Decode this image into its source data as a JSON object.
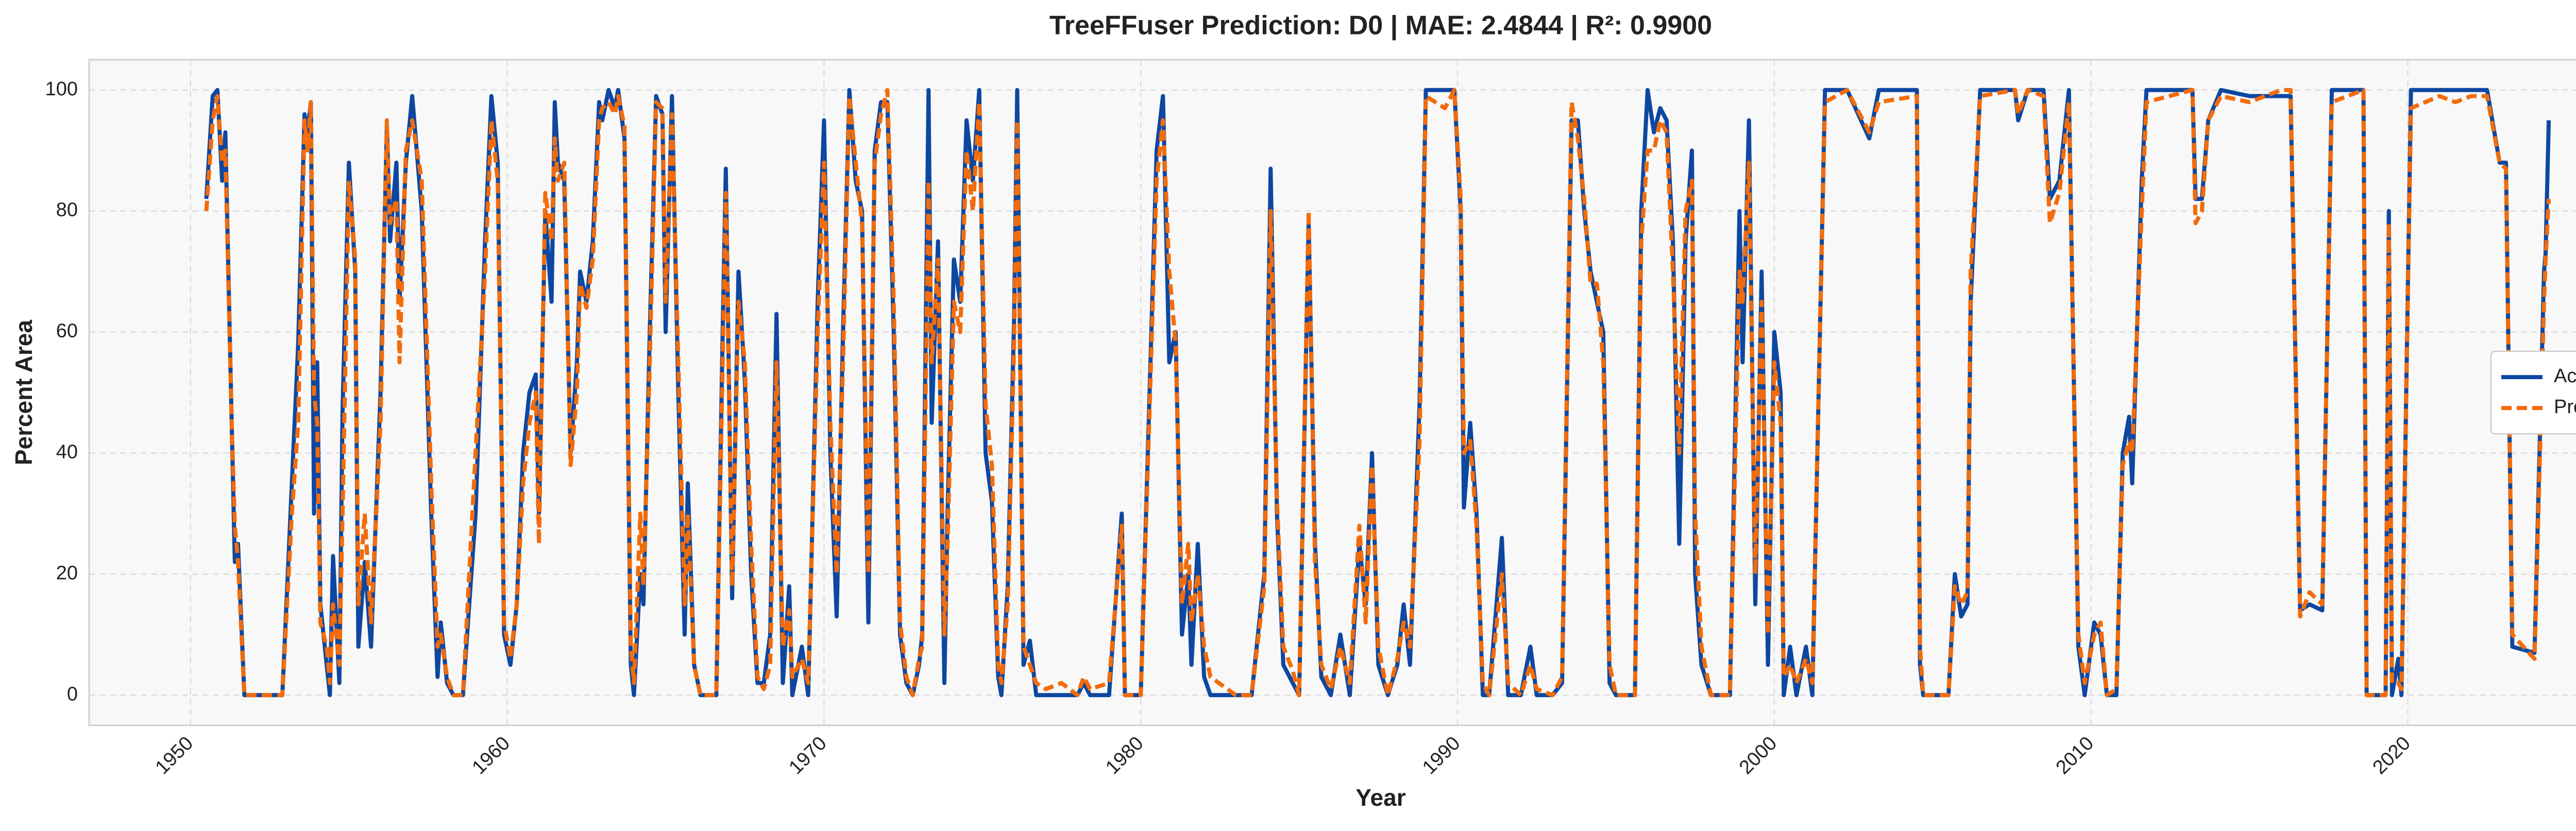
{
  "chart_data": {
    "type": "line",
    "title": "TreeFFuser Prediction: D0 | MAE: 2.4844 | R²: 0.9900",
    "xlabel": "Year",
    "ylabel": "Percent Area",
    "xlim": [
      1946.8,
      2028.4
    ],
    "ylim": [
      -5,
      105
    ],
    "xticks": [
      1950,
      1960,
      1970,
      1980,
      1990,
      2000,
      2010,
      2020
    ],
    "yticks": [
      0,
      20,
      40,
      60,
      80,
      100
    ],
    "grid": true,
    "legend": "center right",
    "x": [
      1950.5,
      1950.7,
      1950.85,
      1951.0,
      1951.1,
      1951.3,
      1951.4,
      1951.5,
      1951.7,
      1952.9,
      1953.2,
      1953.4,
      1953.6,
      1953.7,
      1953.8,
      1953.9,
      1954.0,
      1954.1,
      1954.3,
      1954.4,
      1954.5,
      1954.7,
      1954.8,
      1955.0,
      1955.2,
      1955.3,
      1955.5,
      1955.7,
      1956.0,
      1956.2,
      1956.3,
      1956.5,
      1956.6,
      1956.8,
      1957.0,
      1957.3,
      1957.6,
      1957.8,
      1957.9,
      1958.1,
      1958.3,
      1958.6,
      1959.0,
      1959.3,
      1959.5,
      1959.7,
      1959.9,
      1960.1,
      1960.3,
      1960.5,
      1960.7,
      1960.9,
      1961.0,
      1961.2,
      1961.4,
      1961.5,
      1961.6,
      1961.8,
      1962.0,
      1962.2,
      1962.3,
      1962.5,
      1962.7,
      1962.9,
      1963.0,
      1963.2,
      1963.4,
      1963.5,
      1963.7,
      1963.9,
      1964.0,
      1964.2,
      1964.3,
      1964.5,
      1964.7,
      1964.9,
      1965.0,
      1965.2,
      1965.4,
      1965.6,
      1965.7,
      1965.9,
      1966.1,
      1966.6,
      1966.8,
      1966.9,
      1967.1,
      1967.3,
      1967.5,
      1967.7,
      1967.9,
      1968.1,
      1968.3,
      1968.5,
      1968.7,
      1968.9,
      1969.0,
      1969.3,
      1969.5,
      1969.8,
      1970.0,
      1970.2,
      1970.4,
      1970.6,
      1970.8,
      1971.0,
      1971.2,
      1971.4,
      1971.6,
      1971.8,
      1972.0,
      1972.2,
      1972.4,
      1972.6,
      1972.8,
      1973.0,
      1973.1,
      1973.3,
      1973.4,
      1973.6,
      1973.8,
      1973.9,
      1974.1,
      1974.3,
      1974.5,
      1974.7,
      1974.9,
      1975.1,
      1975.3,
      1975.5,
      1975.6,
      1975.8,
      1976.0,
      1976.1,
      1976.3,
      1976.5,
      1976.7,
      1977.0,
      1977.5,
      1978.0,
      1978.2,
      1978.4,
      1979.0,
      1979.4,
      1979.5,
      1980.0,
      1980.5,
      1980.7,
      1980.9,
      1981.1,
      1981.3,
      1981.5,
      1981.6,
      1981.8,
      1982.0,
      1982.2,
      1983.0,
      1983.5,
      1983.9,
      1984.1,
      1984.3,
      1984.5,
      1984.8,
      1985.0,
      1985.3,
      1985.5,
      1985.7,
      1986.0,
      1986.3,
      1986.6,
      1986.9,
      1987.1,
      1987.3,
      1987.5,
      1987.8,
      1988.1,
      1988.3,
      1988.5,
      1988.8,
      1989.0,
      1989.3,
      1989.6,
      1989.9,
      1990.1,
      1990.2,
      1990.4,
      1990.6,
      1990.8,
      1991.0,
      1991.4,
      1991.6,
      1992.0,
      1992.3,
      1992.5,
      1993.0,
      1993.3,
      1993.6,
      1993.8,
      1994.0,
      1994.2,
      1994.4,
      1994.6,
      1994.8,
      1995.0,
      1995.6,
      1995.8,
      1996.0,
      1996.2,
      1996.4,
      1996.6,
      1996.8,
      1997.0,
      1997.2,
      1997.4,
      1997.5,
      1997.7,
      1998.0,
      1998.6,
      1998.9,
      1999.0,
      1999.2,
      1999.4,
      1999.6,
      1999.8,
      2000.0,
      2000.2,
      2000.3,
      2000.5,
      2000.7,
      2001.0,
      2001.2,
      2001.6,
      2002.3,
      2003.0,
      2003.3,
      2004.5,
      2004.6,
      2004.7,
      2005.5,
      2005.7,
      2005.9,
      2006.1,
      2006.2,
      2006.5,
      2007.6,
      2007.7,
      2008.0,
      2008.5,
      2008.7,
      2009.0,
      2009.3,
      2009.6,
      2009.8,
      2010.1,
      2010.3,
      2010.5,
      2010.8,
      2011.0,
      2011.2,
      2011.3,
      2011.6,
      2011.75,
      2013.2,
      2013.3,
      2013.5,
      2013.7,
      2014.1,
      2015.0,
      2016.0,
      2016.3,
      2016.6,
      2016.9,
      2017.3,
      2017.6,
      2018.6,
      2018.7,
      2019.3,
      2019.4,
      2019.5,
      2019.7,
      2019.8,
      2020.1,
      2021.0,
      2021.5,
      2022.0,
      2022.5,
      2022.9,
      2023.1,
      2023.3,
      2024.0,
      2024.3,
      2024.35,
      2024.45
    ],
    "series": [
      {
        "name": "Actual",
        "color": "#0d47a1",
        "linestyle": "solid",
        "values": [
          82,
          99,
          100,
          85,
          93,
          45,
          22,
          25,
          0,
          0,
          35,
          58,
          96,
          93,
          98,
          30,
          55,
          15,
          5,
          0,
          23,
          2,
          47,
          88,
          70,
          8,
          22,
          8,
          50,
          94,
          75,
          88,
          65,
          88,
          99,
          80,
          30,
          3,
          12,
          2,
          0,
          0,
          30,
          75,
          99,
          88,
          10,
          5,
          15,
          40,
          50,
          53,
          30,
          80,
          65,
          98,
          88,
          85,
          40,
          55,
          70,
          65,
          75,
          98,
          95,
          100,
          97,
          100,
          92,
          5,
          0,
          20,
          15,
          60,
          99,
          96,
          60,
          99,
          50,
          10,
          35,
          5,
          0,
          0,
          60,
          87,
          16,
          70,
          52,
          20,
          2,
          2,
          10,
          63,
          2,
          18,
          0,
          8,
          0,
          65,
          95,
          40,
          13,
          60,
          100,
          85,
          80,
          12,
          90,
          98,
          98,
          60,
          10,
          2,
          0,
          5,
          10,
          100,
          45,
          75,
          2,
          30,
          72,
          65,
          95,
          85,
          100,
          40,
          32,
          3,
          0,
          18,
          62,
          100,
          5,
          9,
          0,
          0,
          0,
          0,
          2,
          0,
          0,
          30,
          0,
          0,
          90,
          99,
          55,
          60,
          10,
          20,
          5,
          25,
          3,
          0,
          0,
          0,
          20,
          87,
          30,
          5,
          2,
          0,
          78,
          25,
          3,
          0,
          10,
          0,
          25,
          15,
          40,
          5,
          0,
          5,
          15,
          5,
          48,
          100,
          100,
          100,
          100,
          80,
          31,
          45,
          30,
          0,
          0,
          26,
          0,
          0,
          8,
          0,
          0,
          2,
          95,
          95,
          80,
          70,
          65,
          60,
          2,
          0,
          0,
          80,
          100,
          93,
          97,
          95,
          75,
          25,
          75,
          90,
          20,
          5,
          0,
          0,
          80,
          55,
          95,
          15,
          70,
          5,
          60,
          50,
          0,
          8,
          0,
          8,
          0,
          100,
          100,
          92,
          100,
          100,
          5,
          0,
          0,
          20,
          13,
          15,
          65,
          100,
          100,
          95,
          100,
          100,
          82,
          85,
          100,
          8,
          0,
          12,
          10,
          0,
          0,
          40,
          46,
          35,
          85,
          100,
          100,
          82,
          82,
          95,
          100,
          99,
          99,
          99,
          14,
          15,
          14,
          100,
          100,
          0,
          0,
          80,
          0,
          6,
          0,
          100,
          100,
          100,
          100,
          100,
          88,
          88,
          8,
          7,
          70,
          73,
          95
        ]
      },
      {
        "name": "Predicted",
        "color": "#f26c0c",
        "linestyle": "dashed",
        "values": [
          80,
          95,
          99,
          88,
          90,
          45,
          28,
          22,
          0,
          0,
          30,
          45,
          95,
          90,
          98,
          50,
          45,
          12,
          8,
          2,
          15,
          5,
          30,
          85,
          72,
          15,
          30,
          12,
          45,
          95,
          78,
          82,
          55,
          90,
          95,
          85,
          35,
          8,
          10,
          3,
          0,
          0,
          40,
          70,
          95,
          85,
          12,
          6,
          15,
          35,
          45,
          50,
          25,
          83,
          75,
          92,
          85,
          88,
          38,
          50,
          68,
          64,
          72,
          95,
          97,
          98,
          96,
          99,
          94,
          8,
          2,
          30,
          18,
          55,
          98,
          97,
          65,
          96,
          55,
          15,
          30,
          5,
          0,
          0,
          55,
          83,
          18,
          65,
          55,
          25,
          3,
          1,
          5,
          55,
          8,
          14,
          3,
          6,
          2,
          60,
          88,
          45,
          20,
          55,
          99,
          88,
          78,
          20,
          88,
          96,
          100,
          65,
          12,
          3,
          0,
          6,
          8,
          85,
          55,
          72,
          10,
          25,
          65,
          60,
          90,
          80,
          98,
          48,
          38,
          5,
          2,
          15,
          58,
          95,
          8,
          5,
          2,
          1,
          2,
          0,
          3,
          1,
          2,
          28,
          0,
          0,
          85,
          95,
          70,
          58,
          15,
          25,
          12,
          20,
          8,
          3,
          0,
          0,
          18,
          80,
          32,
          8,
          4,
          0,
          80,
          22,
          5,
          1,
          8,
          2,
          28,
          12,
          38,
          8,
          0,
          6,
          12,
          8,
          42,
          99,
          98,
          97,
          100,
          82,
          40,
          42,
          28,
          2,
          0,
          20,
          2,
          0,
          5,
          1,
          0,
          3,
          98,
          92,
          82,
          68,
          68,
          55,
          5,
          0,
          0,
          75,
          90,
          90,
          95,
          93,
          70,
          40,
          80,
          85,
          30,
          8,
          0,
          0,
          70,
          65,
          88,
          20,
          65,
          10,
          55,
          45,
          3,
          5,
          2,
          6,
          2,
          98,
          100,
          93,
          98,
          99,
          8,
          0,
          0,
          18,
          15,
          17,
          70,
          99,
          100,
          96,
          100,
          99,
          78,
          83,
          98,
          10,
          2,
          10,
          12,
          0,
          1,
          38,
          42,
          40,
          80,
          98,
          100,
          78,
          80,
          95,
          99,
          98,
          100,
          100,
          13,
          17,
          15,
          98,
          100,
          0,
          0,
          78,
          2,
          2,
          1,
          97,
          99,
          98,
          99,
          99,
          88,
          87,
          10,
          6,
          65,
          72,
          82
        ]
      }
    ]
  }
}
